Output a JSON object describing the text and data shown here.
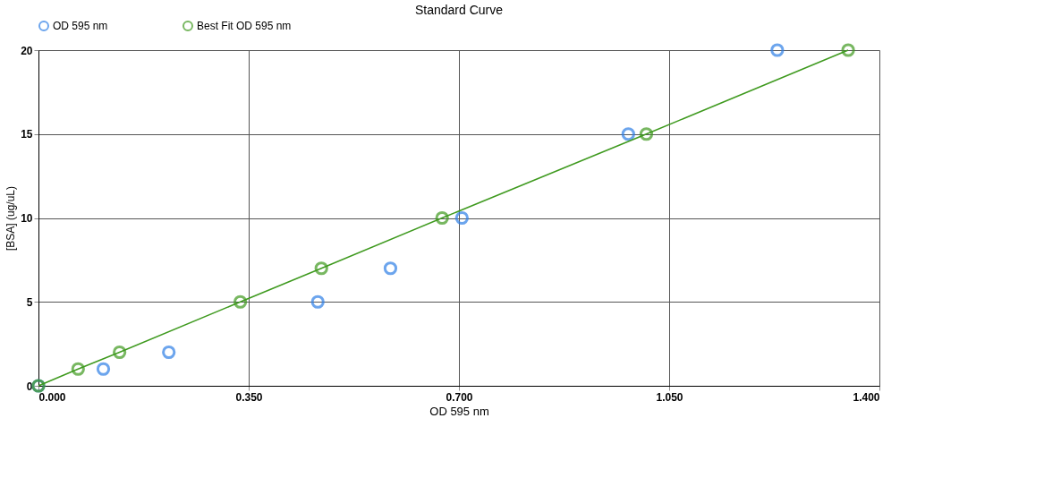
{
  "chart_data": {
    "type": "scatter",
    "title": "Standard Curve",
    "xlabel": "OD 595 nm",
    "ylabel": "[BSA] (ug/uL)",
    "series": [
      {
        "name": "OD 595 nm",
        "color": "#2f7fe6",
        "x": [
          0,
          0.108,
          0.217,
          0.465,
          0.586,
          0.705,
          0.982,
          1.23
        ],
        "values": [
          0,
          1,
          2,
          5,
          7,
          10,
          15,
          20
        ]
      },
      {
        "name": "Best Fit OD 595 nm",
        "type": "line",
        "color": "#3f9a1f",
        "x": [
          0,
          0.066,
          0.135,
          0.336,
          0.471,
          0.672,
          1.012,
          1.348
        ],
        "values": [
          0,
          1,
          2,
          5,
          7,
          10,
          15,
          20
        ]
      }
    ],
    "xlim": [
      0,
      1.4
    ],
    "ylim": [
      0,
      20
    ],
    "xticks": [
      {
        "value": 0,
        "label": "0.000"
      },
      {
        "value": 0.35,
        "label": "0.350"
      },
      {
        "value": 0.7,
        "label": "0.700"
      },
      {
        "value": 1.05,
        "label": "1.050"
      },
      {
        "value": 1.4,
        "label": "1.400"
      }
    ],
    "yticks": [
      0,
      5,
      10,
      15,
      20
    ],
    "grid": true,
    "legend": "top",
    "marker": "circle"
  }
}
